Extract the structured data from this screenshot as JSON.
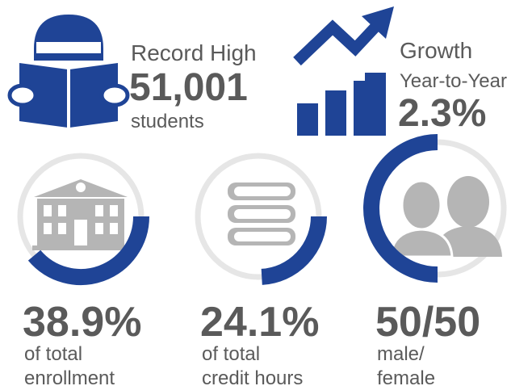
{
  "header": {
    "enrollment": {
      "line1": "Record High",
      "figure": "51,001",
      "line2": "students"
    },
    "growth": {
      "line1": "Growth",
      "line2": "Year-to-Year",
      "figure": "2.3%"
    }
  },
  "stats": [
    {
      "value": 38.9,
      "value_label": "38.9%",
      "caption": [
        "of total",
        "enrollment"
      ]
    },
    {
      "value": 24.1,
      "value_label": "24.1%",
      "caption": [
        "of total",
        "credit hours"
      ]
    },
    {
      "value": 50,
      "value_label": "50/50",
      "caption": [
        "male/",
        "female"
      ]
    }
  ],
  "color": "#1f4496"
}
